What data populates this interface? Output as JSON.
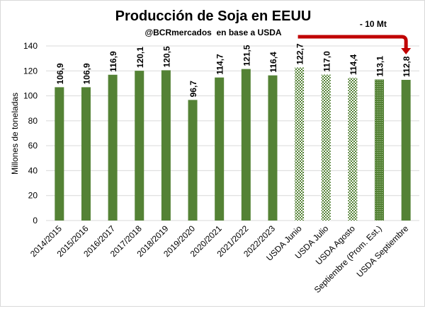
{
  "chart_data": {
    "type": "bar",
    "title": "Producción de Soja en EEUU",
    "subtitle": "@BCRmercados  en base a USDA",
    "ylabel": "Millones de toneladas",
    "xlabel": "",
    "ylim": [
      0,
      140
    ],
    "yticks": [
      0,
      20,
      40,
      60,
      80,
      100,
      120,
      140
    ],
    "grid": true,
    "categories": [
      "2014/2015",
      "2015/2016",
      "2016/2017",
      "2017/2018",
      "2018/2019",
      "2019/2020",
      "2020/2021",
      "2021/2022",
      "2022/2023",
      "USDA Junio",
      "USDA Julio",
      "USDA Agosto",
      "Septiembre (Prom. Est.)",
      "USDA Septiembre"
    ],
    "values": [
      106.9,
      106.9,
      116.9,
      120.1,
      120.5,
      96.7,
      114.7,
      121.5,
      116.4,
      122.7,
      117.0,
      114.4,
      113.1,
      112.8
    ],
    "labels": [
      "106,9",
      "106,9",
      "116,9",
      "120,1",
      "120,5",
      "96,7",
      "114,7",
      "121,5",
      "116,4",
      "122,7",
      "117,0",
      "114,4",
      "113,1",
      "112,8"
    ],
    "fills": [
      "solid",
      "solid",
      "solid",
      "solid",
      "solid",
      "solid",
      "solid",
      "solid",
      "solid",
      "checker",
      "checker",
      "checker",
      "dotted",
      "solid"
    ],
    "annotation": {
      "text": "- 10 Mt",
      "from": "USDA Junio",
      "to": "USDA Septiembre"
    },
    "colors": {
      "bar": "#548235",
      "arrow": "#c00000",
      "grid": "#d9d9d9"
    }
  }
}
